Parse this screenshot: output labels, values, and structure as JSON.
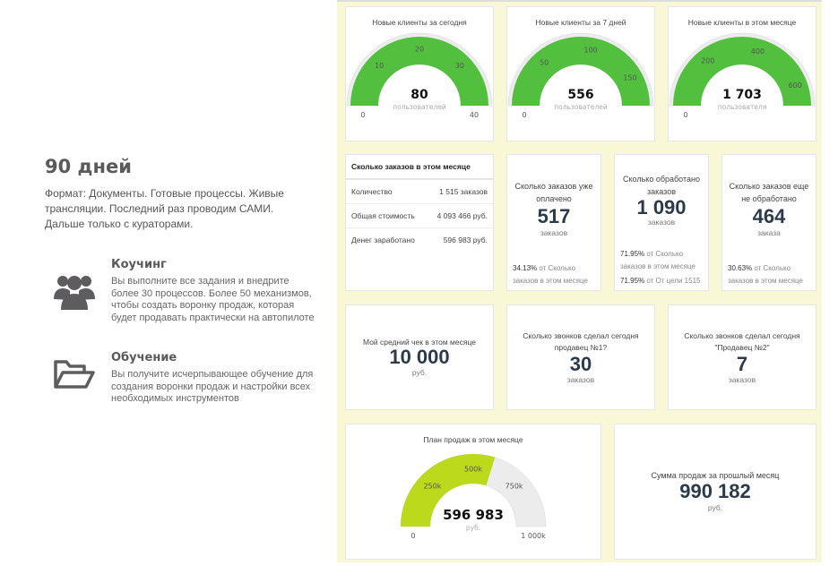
{
  "left": {
    "title": "90 дней",
    "description": "Формат: Документы. Готовые процессы. Живые трансляции. Последний раз проводим САМИ. Дальше только с кураторами.",
    "features": [
      {
        "icon": "users-icon",
        "title": "Коучинг",
        "text": "Вы выполните все задания и внедрите более 30 процессов. Более 50 механизмов, чтобы создать воронку продаж, которая будет продавать практически на автопилоте"
      },
      {
        "icon": "folder-icon",
        "title": "Обучение",
        "text": "Вы получите исчерпывающее обучение для создания воронки продаж и настройки всех необходимых инструментов"
      }
    ]
  },
  "colors": {
    "green": "#52bf3e",
    "lime": "#bcd91c",
    "track": "#ececec",
    "panel": "#f8f8d6"
  },
  "gauges": [
    {
      "title": "Новые клиенты за сегодня",
      "value": 80,
      "display": "80",
      "unit": "пользователей",
      "min": 0,
      "max": 40,
      "min_label": "0",
      "max_label": "40",
      "ticks": [
        10,
        20,
        30
      ],
      "tick_labels": [
        "10",
        "20",
        "30"
      ],
      "color": "#52bf3e"
    },
    {
      "title": "Новые клиенты за 7 дней",
      "value": 556,
      "display": "556",
      "unit": "пользователей",
      "min": 0,
      "max": 180,
      "min_label": "0",
      "ticks": [
        50,
        100,
        150
      ],
      "tick_labels": [
        "50",
        "100",
        "150"
      ],
      "color": "#52bf3e"
    },
    {
      "title": "Новые клиенты в этом месяце",
      "value": 1703,
      "display": "1 703",
      "unit": "пользователя",
      "min": 0,
      "max": 680,
      "min_label": "0",
      "ticks": [
        200,
        400,
        600
      ],
      "tick_labels": [
        "200",
        "400",
        "600"
      ],
      "color": "#52bf3e"
    },
    {
      "title": "План продаж в этом месяце",
      "value": 596983,
      "display": "596 983",
      "unit": "руб.",
      "min": 0,
      "max": 1000000,
      "min_label": "0",
      "max_label": "1 000k",
      "ticks": [
        250000,
        500000,
        750000
      ],
      "tick_labels": [
        "250k",
        "500k",
        "750k"
      ],
      "color": "#bcd91c"
    }
  ],
  "orders_table": {
    "title": "Сколько заказов в этом месяце",
    "rows": [
      {
        "label": "Количество",
        "value": "1 515 заказов"
      },
      {
        "label": "Общая стоимость",
        "value": "4 093 466 руб."
      },
      {
        "label": "Денег заработано",
        "value": "596 983 руб."
      }
    ]
  },
  "stats": [
    {
      "title": "Сколько заказов уже оплачено",
      "value": "517",
      "unit": "заказов",
      "foot": [
        {
          "pct": "34.13%",
          "text": " от Сколько заказов в этом месяце"
        }
      ]
    },
    {
      "title": "Сколько обработано заказов",
      "value": "1 090",
      "unit": "заказов",
      "foot": [
        {
          "pct": "71.95%",
          "text": " от Сколько заказов в этом месяце"
        },
        {
          "pct": "71.95%",
          "text": " от От цели 1515"
        }
      ]
    },
    {
      "title": "Сколько заказов еще не обработано",
      "value": "464",
      "unit": "заказа",
      "foot": [
        {
          "pct": "30.63%",
          "text": " от Сколько заказов в этом месяце"
        }
      ]
    },
    {
      "title": "Мой средний чек в этом месяце",
      "value": "10 000",
      "unit": "руб."
    },
    {
      "title": "Сколько звонков сделал сегодня продавец №1?",
      "value": "30",
      "unit": "заказов"
    },
    {
      "title": "Сколько звонков сделал сегодня \"Продавец №2\"",
      "value": "7",
      "unit": "заказов"
    },
    {
      "title": "Сумма продаж за прошлый месяц",
      "value": "990 182",
      "unit": "руб."
    }
  ]
}
